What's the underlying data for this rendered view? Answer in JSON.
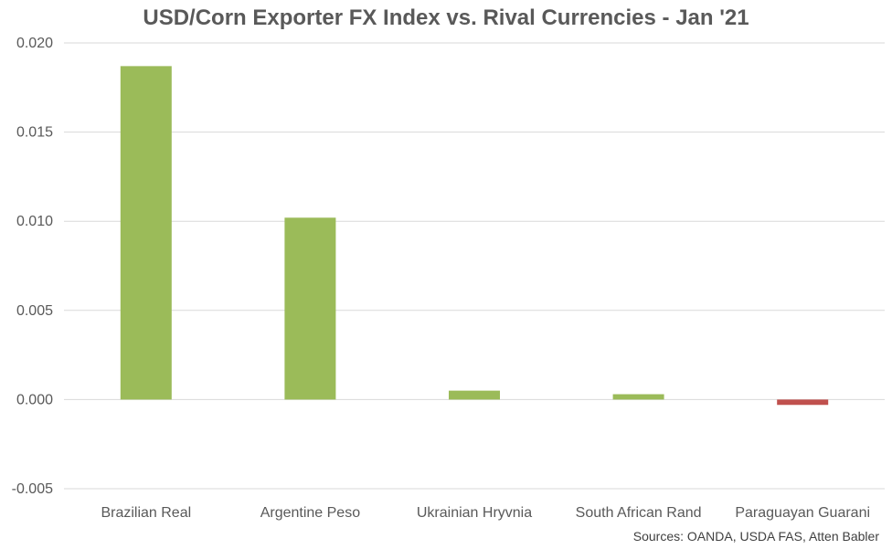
{
  "chart_data": {
    "type": "bar",
    "title": "USD/Corn Exporter FX Index vs. Rival Currencies - Jan '21",
    "categories": [
      "Brazilian Real",
      "Argentine Peso",
      "Ukrainian Hryvnia",
      "South African Rand",
      "Paraguayan Guarani"
    ],
    "values": [
      0.0187,
      0.0102,
      0.0005,
      0.0003,
      -0.0003
    ],
    "ylim": [
      -0.005,
      0.02
    ],
    "yticks": [
      "0.020",
      "0.015",
      "0.010",
      "0.005",
      "0.000",
      "-0.005"
    ],
    "ytick_values": [
      0.02,
      0.015,
      0.01,
      0.005,
      0.0,
      -0.005
    ],
    "grid": true,
    "colors": {
      "positive": "#9bbb59",
      "negative": "#c0504d",
      "grid": "#d9d9d9",
      "text": "#595959"
    }
  },
  "source": "Sources: OANDA, USDA FAS, Atten Babler"
}
